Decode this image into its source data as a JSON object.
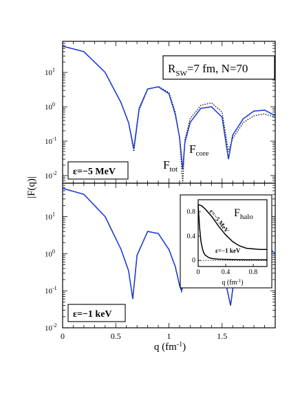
{
  "chart_data": [
    {
      "type": "line",
      "panel": "top",
      "ylabel": "|F(q)|",
      "yscale": "log",
      "xlim": [
        0,
        2.0
      ],
      "ylim": [
        0.006,
        80
      ],
      "y_ticks": [
        {
          "value": 10,
          "base": "10",
          "exp": "1"
        },
        {
          "value": 1,
          "base": "10",
          "exp": "0"
        },
        {
          "value": 0.1,
          "base": "10",
          "exp": "-1"
        },
        {
          "value": 0.01,
          "base": "10",
          "exp": "-2"
        }
      ],
      "info_box": "R_SW=7 fm, N=70",
      "info_box_main": "R",
      "info_box_sub": "SW",
      "info_box_rest": "=7 fm, N=70",
      "epsilon_label": "ε=−5 MeV",
      "annotations": [
        {
          "main": "F",
          "sub": "core"
        },
        {
          "main": "F",
          "sub": "tot"
        }
      ],
      "series": [
        {
          "style": "solid",
          "color": "#1f3fd6",
          "x": [
            0.0,
            0.2,
            0.4,
            0.55,
            0.62,
            0.67,
            0.72,
            0.8,
            0.9,
            1.0,
            1.06,
            1.1,
            1.13,
            1.15,
            1.2,
            1.3,
            1.4,
            1.5,
            1.56,
            1.6,
            1.7,
            1.8,
            1.9,
            2.0
          ],
          "y": [
            58,
            40,
            10,
            1.3,
            0.35,
            0.06,
            0.9,
            3.3,
            3.8,
            2.4,
            0.6,
            0.13,
            0.015,
            0.09,
            0.35,
            0.9,
            1.0,
            0.5,
            0.03,
            0.15,
            0.45,
            0.75,
            0.8,
            0.55
          ]
        },
        {
          "style": "dotted",
          "color": "#000000",
          "x": [
            0.0,
            0.2,
            0.4,
            0.55,
            0.62,
            0.67,
            0.72,
            0.8,
            0.9,
            1.0,
            1.06,
            1.1,
            1.13,
            1.15,
            1.2,
            1.3,
            1.4,
            1.5,
            1.56,
            1.6,
            1.7,
            1.8,
            1.9,
            2.0
          ],
          "y": [
            58,
            40,
            10,
            1.3,
            0.35,
            0.05,
            0.8,
            3.2,
            3.9,
            2.6,
            0.7,
            0.12,
            0.006,
            0.11,
            0.45,
            1.1,
            1.3,
            0.7,
            0.05,
            0.12,
            0.35,
            0.55,
            0.62,
            0.5
          ]
        }
      ]
    },
    {
      "type": "line",
      "panel": "bottom",
      "yscale": "log",
      "xlabel": "q (fm⁻¹)",
      "xlim": [
        0,
        2.0
      ],
      "ylim": [
        0.01,
        80
      ],
      "x_ticks": [
        "0",
        "0.5",
        "1",
        "1.5"
      ],
      "x_tick_values": [
        0,
        0.5,
        1,
        1.5
      ],
      "y_ticks": [
        {
          "value": 10,
          "base": "10",
          "exp": "1"
        },
        {
          "value": 1,
          "base": "10",
          "exp": "0"
        },
        {
          "value": 0.1,
          "base": "10",
          "exp": "-1"
        },
        {
          "value": 0.01,
          "base": "10",
          "exp": "-2"
        }
      ],
      "epsilon_label": "ε=−1 keV",
      "series": [
        {
          "style": "solid",
          "color": "#1f3fd6",
          "x": [
            0.0,
            0.2,
            0.4,
            0.55,
            0.62,
            0.66,
            0.7,
            0.8,
            0.9,
            1.0,
            1.06,
            1.1,
            1.12,
            1.15,
            1.2,
            1.3,
            1.4,
            1.5,
            1.55,
            1.58,
            1.62,
            1.7,
            1.8,
            1.9,
            2.0
          ],
          "y": [
            58,
            40,
            10,
            1.3,
            0.35,
            0.06,
            0.9,
            4.0,
            3.5,
            1.3,
            0.45,
            0.14,
            0.1,
            0.3,
            1.3,
            2.0,
            1.3,
            0.4,
            0.1,
            0.04,
            0.3,
            1.5,
            2.2,
            1.8,
            1.0
          ]
        },
        {
          "style": "dotted",
          "color": "#000000",
          "x": [
            0.0,
            0.2,
            0.4,
            0.55,
            0.62,
            0.66,
            0.7,
            0.8,
            0.9,
            1.0,
            1.06,
            1.1,
            1.12,
            1.15,
            1.2,
            1.3,
            1.4,
            1.5,
            1.55,
            1.58,
            1.62,
            1.7,
            1.8,
            1.9,
            2.0
          ],
          "y": [
            58,
            40,
            10,
            1.3,
            0.35,
            0.06,
            0.9,
            4.0,
            3.5,
            1.3,
            0.45,
            0.14,
            0.09,
            0.3,
            1.3,
            2.0,
            1.3,
            0.4,
            0.1,
            0.04,
            0.3,
            1.5,
            2.2,
            1.8,
            1.0
          ]
        }
      ]
    },
    {
      "type": "line",
      "panel": "inset",
      "yscale": "linear",
      "xlabel": "q (fm⁻¹)",
      "xlim": [
        0,
        1.0
      ],
      "ylim": [
        -0.1,
        1.0
      ],
      "x_ticks": [
        "0",
        "0.4",
        "0.8"
      ],
      "x_tick_values": [
        0,
        0.4,
        0.8
      ],
      "y_ticks": [
        "0",
        "0.4",
        "0.8"
      ],
      "y_tick_values": [
        0,
        0.4,
        0.8
      ],
      "title_main": "F",
      "title_sub": "halo",
      "series": [
        {
          "name": "ε=−5 MeV",
          "style": "solid",
          "color": "#000000",
          "x": [
            0.0,
            0.05,
            0.1,
            0.2,
            0.3,
            0.4,
            0.5,
            0.6,
            0.7,
            0.8,
            0.9,
            1.0
          ],
          "y": [
            0.92,
            0.9,
            0.85,
            0.72,
            0.56,
            0.42,
            0.31,
            0.24,
            0.2,
            0.19,
            0.18,
            0.18
          ]
        },
        {
          "name": "ε=−1 keV",
          "style": "solid",
          "color": "#000000",
          "x": [
            0.0,
            0.02,
            0.04,
            0.06,
            0.08,
            0.1,
            0.15,
            0.2,
            0.3,
            0.5,
            0.7,
            1.0
          ],
          "y": [
            0.92,
            0.55,
            0.32,
            0.2,
            0.13,
            0.09,
            0.05,
            0.03,
            0.02,
            0.015,
            0.01,
            0.01
          ]
        },
        {
          "style": "dotted",
          "color": "#000000",
          "x": [
            0.0,
            1.0
          ],
          "y": [
            0.0,
            0.0
          ]
        }
      ]
    }
  ]
}
